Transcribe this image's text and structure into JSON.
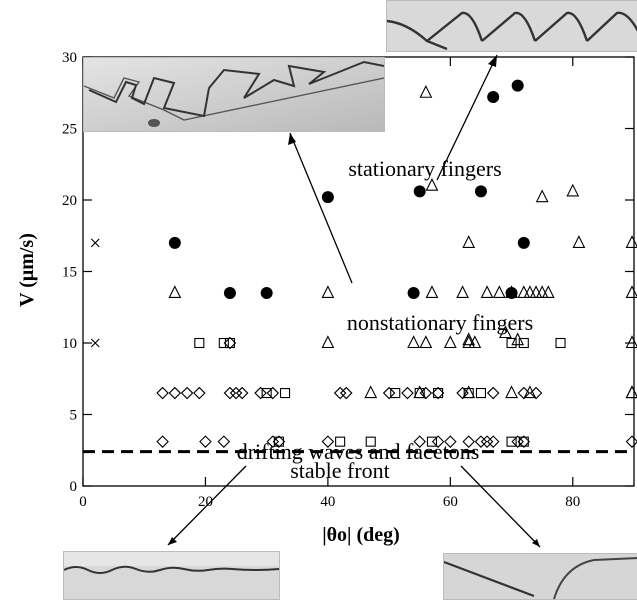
{
  "chart_data": {
    "type": "scatter",
    "xlabel": "|θo|  (deg)",
    "ylabel": "V (μm/s)",
    "xlim": [
      0,
      90
    ],
    "ylim": [
      0,
      30
    ],
    "xticks": [
      0,
      20,
      40,
      60,
      80
    ],
    "yticks": [
      0,
      5,
      10,
      15,
      20,
      25,
      30
    ],
    "grid": false,
    "stable_threshold": 2.4,
    "annotations": [
      {
        "id": "stationary",
        "text": "stationary fingers"
      },
      {
        "id": "nonstationary",
        "text": "nonstationary fingers"
      },
      {
        "id": "drifting",
        "text": "drifting waves and facetons"
      },
      {
        "id": "stable",
        "text": "stable front"
      }
    ],
    "series": [
      {
        "marker": "circle-filled",
        "points": [
          [
            15,
            17
          ],
          [
            24,
            13.5
          ],
          [
            30,
            13.5
          ],
          [
            40,
            20.2
          ],
          [
            54,
            13.5
          ],
          [
            55,
            20.6
          ],
          [
            65,
            20.6
          ],
          [
            67,
            27.2
          ],
          [
            70,
            13.5
          ],
          [
            71,
            28
          ],
          [
            72,
            17
          ]
        ]
      },
      {
        "marker": "triangle",
        "points": [
          [
            15,
            13.5
          ],
          [
            40,
            13.5
          ],
          [
            56,
            27.5
          ],
          [
            57,
            21
          ],
          [
            63,
            17
          ],
          [
            75,
            20.2
          ],
          [
            80,
            20.6
          ],
          [
            81,
            17
          ],
          [
            90,
            17
          ],
          [
            90,
            13.5
          ],
          [
            40,
            10
          ],
          [
            54,
            10
          ],
          [
            56,
            10
          ],
          [
            57,
            13.5
          ],
          [
            60,
            10
          ],
          [
            62,
            13.5
          ],
          [
            63,
            10
          ],
          [
            63,
            10.2
          ],
          [
            64,
            10
          ],
          [
            66,
            13.5
          ],
          [
            68,
            13.5
          ],
          [
            69,
            10.7
          ],
          [
            70,
            13.5
          ],
          [
            71,
            10.2
          ],
          [
            72,
            13.5
          ],
          [
            73,
            13.5
          ],
          [
            74,
            13.5
          ],
          [
            75,
            13.5
          ],
          [
            76,
            13.5
          ],
          [
            90,
            10
          ],
          [
            90,
            6.5
          ],
          [
            90,
            6.5
          ],
          [
            47,
            6.5
          ],
          [
            55,
            6.5
          ],
          [
            63,
            6.5
          ],
          [
            70,
            6.5
          ],
          [
            73,
            6.5
          ]
        ]
      },
      {
        "marker": "diamond",
        "points": [
          [
            13,
            6.5
          ],
          [
            15,
            6.5
          ],
          [
            17,
            6.5
          ],
          [
            19,
            6.5
          ],
          [
            24,
            6.5
          ],
          [
            25,
            6.5
          ],
          [
            26,
            6.5
          ],
          [
            29,
            6.5
          ],
          [
            31,
            6.5
          ],
          [
            42,
            6.5
          ],
          [
            43,
            6.5
          ],
          [
            50,
            6.5
          ],
          [
            53,
            6.5
          ],
          [
            56,
            6.5
          ],
          [
            58,
            6.5
          ],
          [
            62,
            6.5
          ],
          [
            67,
            6.5
          ],
          [
            72,
            6.5
          ],
          [
            74,
            6.5
          ],
          [
            13,
            3.1
          ],
          [
            20,
            3.1
          ],
          [
            23,
            3.1
          ],
          [
            31,
            3.1
          ],
          [
            32,
            3.1
          ],
          [
            40,
            3.1
          ],
          [
            55,
            3.1
          ],
          [
            58,
            3.1
          ],
          [
            60,
            3.1
          ],
          [
            63,
            3.1
          ],
          [
            65,
            3.1
          ],
          [
            66,
            3.1
          ],
          [
            67,
            3.1
          ],
          [
            71,
            3.1
          ],
          [
            72,
            3.1
          ],
          [
            90,
            3.1
          ],
          [
            24,
            10
          ]
        ]
      },
      {
        "marker": "square",
        "points": [
          [
            19,
            10
          ],
          [
            23,
            10
          ],
          [
            24,
            10
          ],
          [
            30,
            6.5
          ],
          [
            33,
            6.5
          ],
          [
            51,
            6.5
          ],
          [
            55,
            6.5
          ],
          [
            58,
            6.5
          ],
          [
            63,
            6.5
          ],
          [
            65,
            6.5
          ],
          [
            70,
            10
          ],
          [
            72,
            10
          ],
          [
            78,
            10
          ],
          [
            32,
            3.1
          ],
          [
            42,
            3.1
          ],
          [
            47,
            3.1
          ],
          [
            57,
            3.1
          ],
          [
            70,
            3.1
          ],
          [
            72,
            3.1
          ]
        ]
      },
      {
        "marker": "cross",
        "points": [
          [
            2,
            17
          ],
          [
            2,
            10
          ]
        ]
      }
    ]
  }
}
